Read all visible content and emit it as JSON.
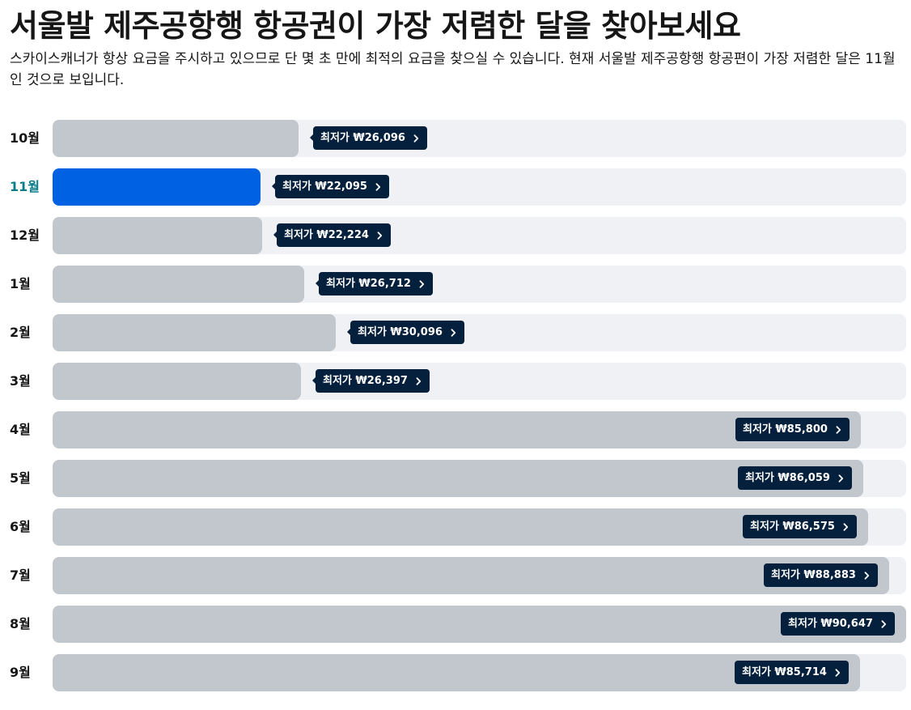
{
  "header": {
    "title": "서울발 제주공항행 항공권이 가장 저렴한 달을 찾아보세요",
    "subtitle": "스카이스캐너가 항상 요금을 주시하고 있으므로 단 몇 초 만에 최적의 요금을 찾으실 수 있습니다. 현재 서울발 제주공항행 항공편이 가장 저렴한 달은 11월인 것으로 보입니다."
  },
  "colors": {
    "bar": "#c1c7cd",
    "bar_cheapest": "#0062e3",
    "track": "#eff1f4",
    "tag_bg": "#05203c",
    "cheapest_label": "#0b7c8a"
  },
  "chart_data": {
    "type": "bar",
    "orientation": "horizontal",
    "categories": [
      "10월",
      "11월",
      "12월",
      "1월",
      "2월",
      "3월",
      "4월",
      "5월",
      "6월",
      "7월",
      "8월",
      "9월"
    ],
    "values": [
      26096,
      22095,
      22224,
      26712,
      30096,
      26397,
      85800,
      86059,
      86575,
      88883,
      90647,
      85714
    ],
    "labels": [
      "최저가 ₩26,096",
      "최저가 ₩22,095",
      "최저가 ₩22,224",
      "최저가 ₩26,712",
      "최저가 ₩30,096",
      "최저가 ₩26,397",
      "최저가 ₩85,800",
      "최저가 ₩86,059",
      "최저가 ₩86,575",
      "최저가 ₩88,883",
      "최저가 ₩90,647",
      "최저가 ₩85,714"
    ],
    "highlight_index": 1,
    "xlim": [
      0,
      90647
    ],
    "title": "",
    "xlabel": "",
    "ylabel": "",
    "grid": false,
    "legend": "none"
  }
}
